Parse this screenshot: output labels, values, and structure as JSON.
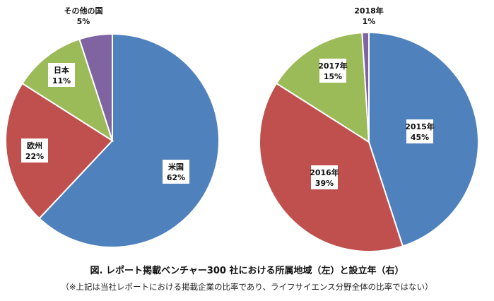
{
  "chart_data": [
    {
      "type": "pie",
      "title": "",
      "slices": [
        {
          "label": "米国",
          "value": 62,
          "value_text": "62%",
          "color": "#4f81bd"
        },
        {
          "label": "欧州",
          "value": 22,
          "value_text": "22%",
          "color": "#c0504d"
        },
        {
          "label": "日本",
          "value": 11,
          "value_text": "11%",
          "color": "#9bbb59"
        },
        {
          "label": "その他の国",
          "value": 5,
          "value_text": "5%",
          "color": "#8064a2"
        }
      ]
    },
    {
      "type": "pie",
      "title": "",
      "slices": [
        {
          "label": "2015年",
          "value": 45,
          "value_text": "45%",
          "color": "#4f81bd"
        },
        {
          "label": "2016年",
          "value": 39,
          "value_text": "39%",
          "color": "#c0504d"
        },
        {
          "label": "2017年",
          "value": 15,
          "value_text": "15%",
          "color": "#9bbb59"
        },
        {
          "label": "2018年",
          "value": 1,
          "value_text": "1%",
          "color": "#8064a2"
        }
      ]
    }
  ],
  "caption": "図. レポート掲載ベンチャー300 社における所属地域（左）と設立年（右）",
  "note": "（※上記は当社レポートにおける掲載企業の比率であり、ライフサイエンス分野全体の比率ではない）"
}
